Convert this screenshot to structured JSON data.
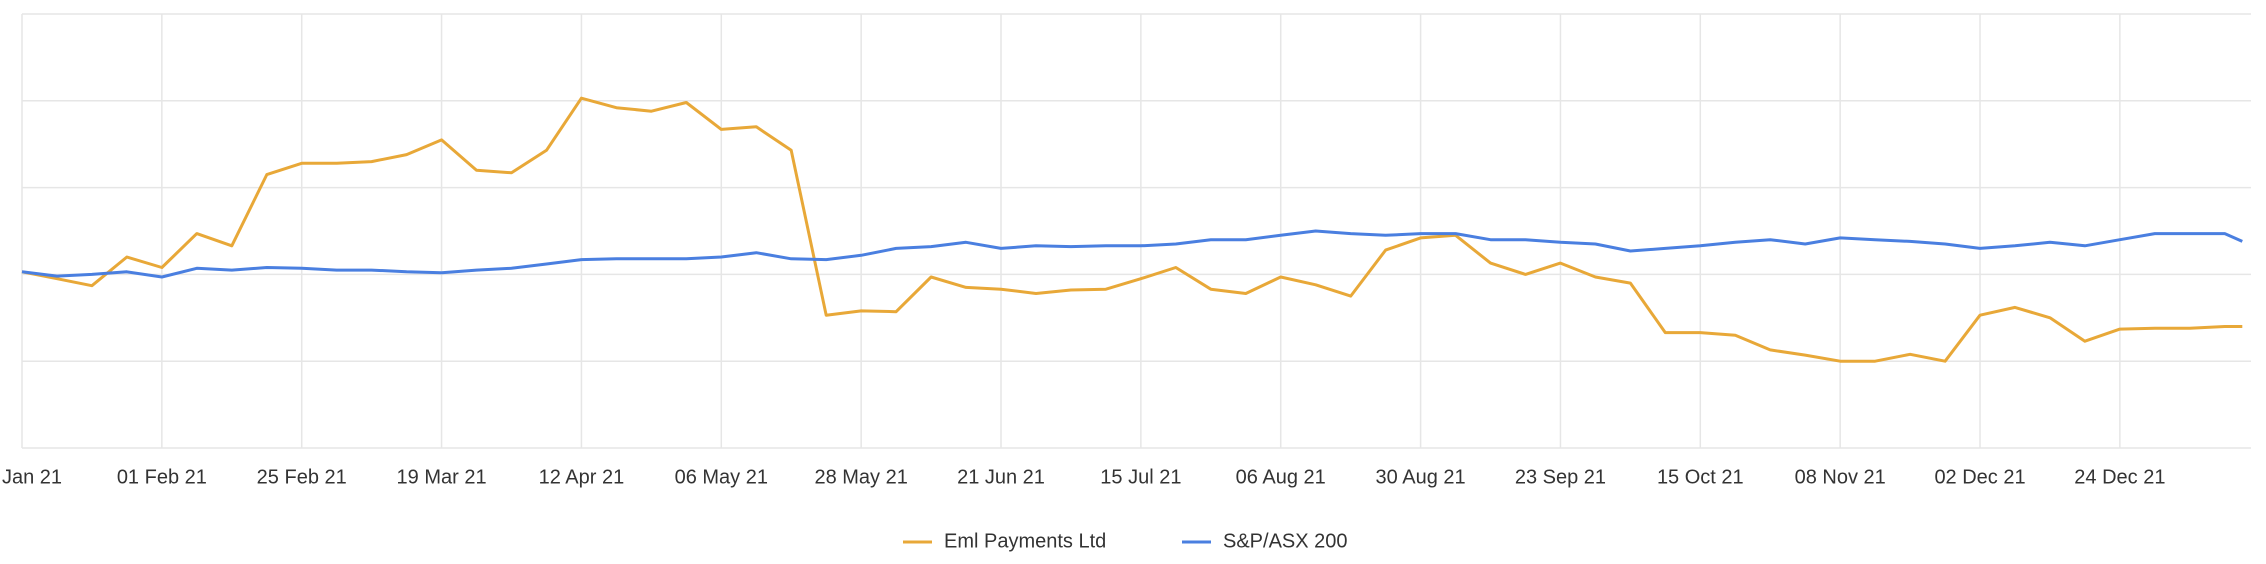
{
  "chart_data": {
    "type": "line",
    "x": [
      0,
      4,
      8,
      12,
      16,
      20,
      24,
      28,
      32,
      36,
      40,
      44,
      48,
      52,
      56,
      60,
      64,
      68,
      72,
      76,
      80,
      84,
      88,
      92,
      96,
      100,
      104,
      108,
      112,
      116,
      120,
      124,
      128,
      132,
      136,
      140,
      144,
      148,
      152,
      156,
      160,
      164,
      168,
      172,
      176,
      180,
      184,
      188,
      192,
      196,
      200,
      204,
      208,
      212,
      216,
      220,
      224,
      228,
      232,
      236,
      240,
      244,
      248,
      252,
      254
    ],
    "series": [
      {
        "name": "Eml Payments Ltd",
        "color": "#e8a838",
        "values": [
          2.03,
          1.95,
          1.87,
          2.2,
          2.08,
          2.47,
          2.33,
          3.15,
          3.28,
          3.28,
          3.3,
          3.38,
          3.55,
          3.2,
          3.17,
          3.43,
          4.03,
          3.92,
          3.88,
          3.98,
          3.67,
          3.7,
          3.43,
          1.53,
          1.58,
          1.57,
          1.97,
          1.85,
          1.83,
          1.78,
          1.82,
          1.83,
          1.95,
          2.08,
          1.83,
          1.78,
          1.97,
          1.88,
          1.75,
          2.28,
          2.42,
          2.45,
          2.13,
          2.0,
          2.13,
          1.97,
          1.9,
          1.33,
          1.33,
          1.3,
          1.13,
          1.07,
          1.0,
          1.0,
          1.08,
          1.0,
          1.53,
          1.62,
          1.5,
          1.23,
          1.37,
          1.38,
          1.38,
          1.4,
          1.4
        ]
      },
      {
        "name": "S&P/ASX 200",
        "color": "#4a7fe0",
        "values": [
          2.03,
          1.98,
          2.0,
          2.03,
          1.97,
          2.07,
          2.05,
          2.08,
          2.07,
          2.05,
          2.05,
          2.03,
          2.02,
          2.05,
          2.07,
          2.12,
          2.17,
          2.18,
          2.18,
          2.18,
          2.2,
          2.25,
          2.18,
          2.17,
          2.22,
          2.3,
          2.32,
          2.37,
          2.3,
          2.33,
          2.32,
          2.33,
          2.33,
          2.35,
          2.4,
          2.4,
          2.45,
          2.5,
          2.47,
          2.45,
          2.47,
          2.47,
          2.4,
          2.4,
          2.37,
          2.35,
          2.27,
          2.3,
          2.33,
          2.37,
          2.4,
          2.35,
          2.42,
          2.4,
          2.38,
          2.35,
          2.3,
          2.33,
          2.37,
          2.33,
          2.4,
          2.47,
          2.47,
          2.47,
          2.38
        ]
      }
    ],
    "xlim": [
      0,
      255
    ],
    "xticks": [
      {
        "value": 0,
        "label": "Jan 21"
      },
      {
        "value": 16,
        "label": "01 Feb 21"
      },
      {
        "value": 32,
        "label": "25 Feb 21"
      },
      {
        "value": 48,
        "label": "19 Mar 21"
      },
      {
        "value": 64,
        "label": "12 Apr 21"
      },
      {
        "value": 80,
        "label": "06 May 21"
      },
      {
        "value": 96,
        "label": "28 May 21"
      },
      {
        "value": 112,
        "label": "21 Jun 21"
      },
      {
        "value": 128,
        "label": "15 Jul 21"
      },
      {
        "value": 144,
        "label": "06 Aug 21"
      },
      {
        "value": 160,
        "label": "30 Aug 21"
      },
      {
        "value": 176,
        "label": "23 Sep 21"
      },
      {
        "value": 192,
        "label": "15 Oct 21"
      },
      {
        "value": 208,
        "label": "08 Nov 21"
      },
      {
        "value": 224,
        "label": "02 Dec 21"
      },
      {
        "value": 240,
        "label": "24 Dec 21"
      }
    ],
    "ylim": [
      0,
      5
    ],
    "yticks": [
      0,
      1,
      2,
      3,
      4,
      5
    ],
    "grid": true
  }
}
